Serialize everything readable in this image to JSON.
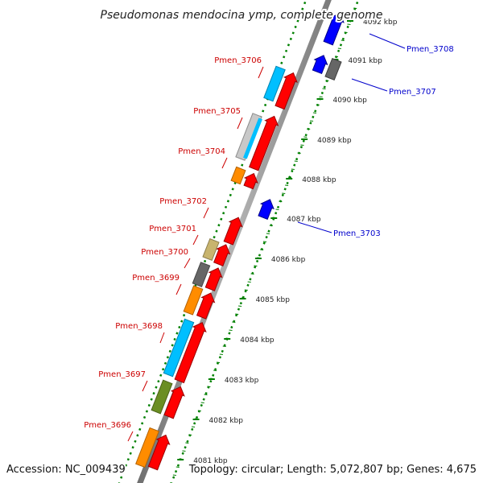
{
  "header": {
    "title": "Pseudomonas mendocina ymp, complete genome"
  },
  "footer": {
    "accession": "Accession: NC_009439",
    "summary": "Topology: circular; Length: 5,072,807 bp; Genes: 4,675"
  },
  "colors": {
    "forward_label": "#cc0000",
    "reverse_label": "#0000cc",
    "strand_arrow": "#ff0000",
    "reverse_arrow": "#0000ff",
    "tick": "#008000",
    "backbone": "#8c8c8c",
    "cog_cyan": "#00bfff",
    "cog_gray": "#666666",
    "cog_light_gray": "#c8c8c8",
    "cog_orange": "#ff8c00",
    "cog_khaki": "#c8b46e",
    "cog_olive": "#6b8e23"
  },
  "scale": {
    "unit": "kbp",
    "ticks": [
      "4081 kbp",
      "4082 kbp",
      "4083 kbp",
      "4084 kbp",
      "4085 kbp",
      "4086 kbp",
      "4087 kbp",
      "4088 kbp",
      "4089 kbp",
      "4090 kbp",
      "4091 kbp",
      "4092 kbp"
    ]
  },
  "genes_forward": [
    {
      "label": "Pmen_3696",
      "cog": "cog_orange"
    },
    {
      "label": "Pmen_3697",
      "cog": "cog_olive"
    },
    {
      "label": "Pmen_3698",
      "cog": "cog_cyan"
    },
    {
      "label": "Pmen_3699",
      "cog": "cog_orange"
    },
    {
      "label": "Pmen_3700",
      "cog": "cog_gray"
    },
    {
      "label": "Pmen_3701",
      "cog": "cog_khaki"
    },
    {
      "label": "Pmen_3702",
      "cog": ""
    },
    {
      "label": "Pmen_3704",
      "cog": "cog_orange"
    },
    {
      "label": "Pmen_3705",
      "cog": "cog_light_gray"
    },
    {
      "label": "Pmen_3706",
      "cog": "cog_cyan"
    }
  ],
  "genes_reverse": [
    {
      "label": "Pmen_3703",
      "cog": ""
    },
    {
      "label": "Pmen_3707",
      "cog": "cog_gray"
    },
    {
      "label": "Pmen_3708",
      "cog": ""
    }
  ]
}
